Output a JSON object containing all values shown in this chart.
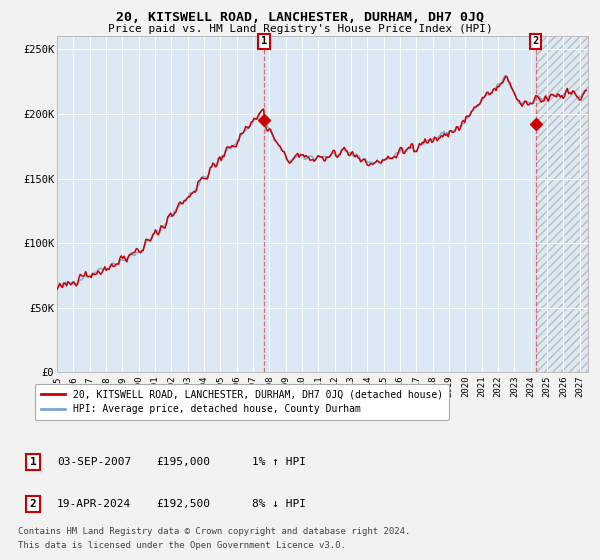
{
  "title": "20, KITSWELL ROAD, LANCHESTER, DURHAM, DH7 0JQ",
  "subtitle": "Price paid vs. HM Land Registry's House Price Index (HPI)",
  "bg_color": "#dce9f5",
  "fig_bg_color": "#f2f2f2",
  "grid_color": "#ffffff",
  "red_line_color": "#cc0000",
  "blue_line_color": "#7ba7cc",
  "marker_color": "#cc0000",
  "sale1_date_num": 2007.67,
  "sale1_price": 195000,
  "sale1_label": "03-SEP-2007",
  "sale1_hpi_pct": "1% ↑ HPI",
  "sale2_date_num": 2024.3,
  "sale2_price": 192500,
  "sale2_label": "19-APR-2024",
  "sale2_hpi_pct": "8% ↓ HPI",
  "xmin": 1995.0,
  "xmax": 2027.5,
  "ymin": 0,
  "ymax": 260000,
  "yticks": [
    0,
    50000,
    100000,
    150000,
    200000,
    250000
  ],
  "ytick_labels": [
    "£0",
    "£50K",
    "£100K",
    "£150K",
    "£200K",
    "£250K"
  ],
  "xtick_years": [
    1995,
    1996,
    1997,
    1998,
    1999,
    2000,
    2001,
    2002,
    2003,
    2004,
    2005,
    2006,
    2007,
    2008,
    2009,
    2010,
    2011,
    2012,
    2013,
    2014,
    2015,
    2016,
    2017,
    2018,
    2019,
    2020,
    2021,
    2022,
    2023,
    2024,
    2025,
    2026,
    2027
  ],
  "legend_line1": "20, KITSWELL ROAD, LANCHESTER, DURHAM, DH7 0JQ (detached house)",
  "legend_line2": "HPI: Average price, detached house, County Durham",
  "footer1": "Contains HM Land Registry data © Crown copyright and database right 2024.",
  "footer2": "This data is licensed under the Open Government Licence v3.0.",
  "hatch_start": 2024.3,
  "hatch_end": 2027.5
}
